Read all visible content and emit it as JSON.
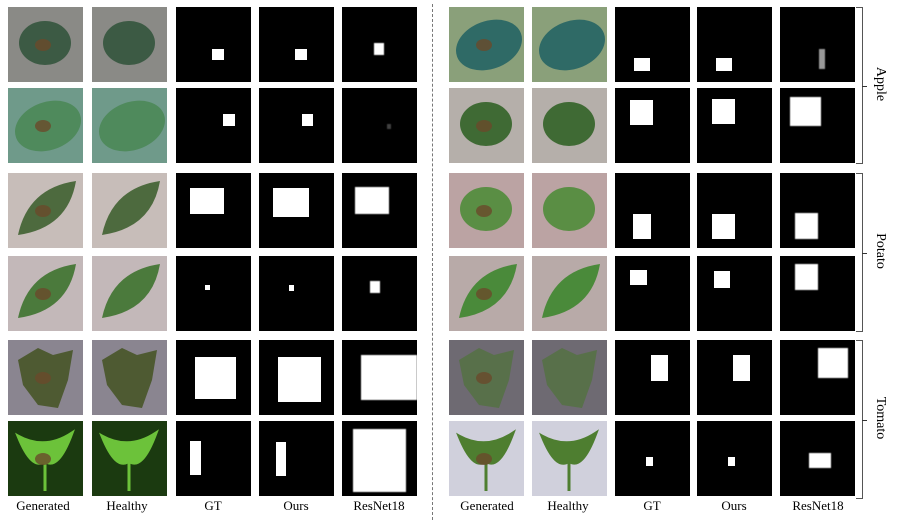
{
  "column_labels": [
    "Generated",
    "Healthy",
    "GT",
    "Ours",
    "ResNet18"
  ],
  "groups": [
    {
      "label": "Apple"
    },
    {
      "label": "Potato"
    },
    {
      "label": "Tomato"
    }
  ],
  "colors": {
    "mask_background": "#000000",
    "mask_foreground": "#ffffff",
    "divider": "#777777"
  }
}
